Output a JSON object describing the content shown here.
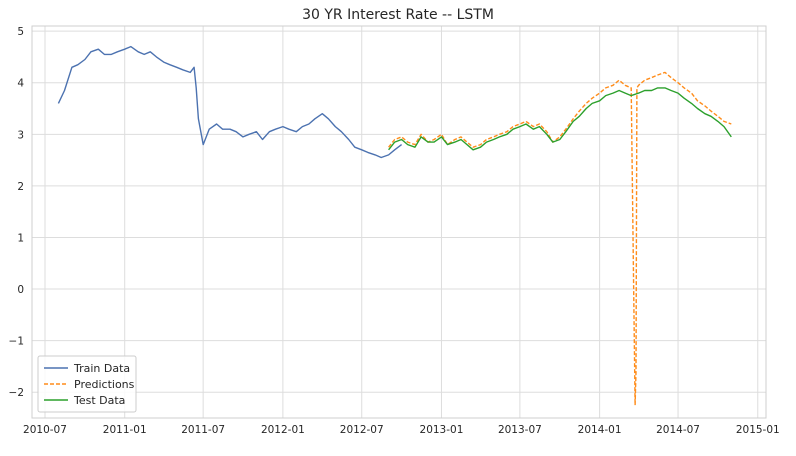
{
  "chart_data": {
    "type": "line",
    "title": "30 YR Interest Rate -- LSTM",
    "xlabel": "",
    "ylabel": "",
    "xlim": [
      "2010-06-01",
      "2015-01-20"
    ],
    "ylim": [
      -2.5,
      5.1
    ],
    "x_ticks": [
      "2010-07",
      "2011-01",
      "2011-07",
      "2012-01",
      "2012-07",
      "2013-01",
      "2013-07",
      "2014-01",
      "2014-07",
      "2015-01"
    ],
    "y_ticks": [
      -2,
      -1,
      0,
      1,
      2,
      3,
      4,
      5
    ],
    "grid": true,
    "legend_position": "lower-left",
    "colors": {
      "train": "#4c72b0",
      "predictions": "#ff8c1a",
      "test": "#2ca02c"
    },
    "series": [
      {
        "name": "Train Data",
        "style": "solid",
        "x": [
          "2010-08-01",
          "2010-08-15",
          "2010-09-01",
          "2010-09-15",
          "2010-10-01",
          "2010-10-15",
          "2010-11-01",
          "2010-11-15",
          "2010-12-01",
          "2010-12-15",
          "2011-01-01",
          "2011-01-15",
          "2011-02-01",
          "2011-02-15",
          "2011-03-01",
          "2011-03-15",
          "2011-04-01",
          "2011-04-15",
          "2011-05-01",
          "2011-05-15",
          "2011-06-01",
          "2011-06-10",
          "2011-06-15",
          "2011-06-20",
          "2011-07-01",
          "2011-07-15",
          "2011-08-01",
          "2011-08-15",
          "2011-09-01",
          "2011-09-15",
          "2011-10-01",
          "2011-10-15",
          "2011-11-01",
          "2011-11-15",
          "2011-12-01",
          "2011-12-15",
          "2012-01-01",
          "2012-01-15",
          "2012-02-01",
          "2012-02-15",
          "2012-03-01",
          "2012-03-15",
          "2012-04-01",
          "2012-04-15",
          "2012-05-01",
          "2012-05-15",
          "2012-06-01",
          "2012-06-15",
          "2012-07-01",
          "2012-07-15",
          "2012-08-01",
          "2012-08-15",
          "2012-09-01",
          "2012-09-15",
          "2012-10-01"
        ],
        "values": [
          3.6,
          3.85,
          4.3,
          4.35,
          4.45,
          4.6,
          4.65,
          4.55,
          4.55,
          4.6,
          4.65,
          4.7,
          4.6,
          4.55,
          4.6,
          4.5,
          4.4,
          4.35,
          4.3,
          4.25,
          4.2,
          4.3,
          3.9,
          3.3,
          2.8,
          3.1,
          3.2,
          3.1,
          3.1,
          3.05,
          2.95,
          3.0,
          3.05,
          2.9,
          3.05,
          3.1,
          3.15,
          3.1,
          3.05,
          3.15,
          3.2,
          3.3,
          3.4,
          3.3,
          3.15,
          3.05,
          2.9,
          2.75,
          2.7,
          2.65,
          2.6,
          2.55,
          2.6,
          2.7,
          2.8
        ]
      },
      {
        "name": "Predictions",
        "style": "dashed",
        "x": [
          "2012-09-01",
          "2012-09-15",
          "2012-10-01",
          "2012-10-15",
          "2012-11-01",
          "2012-11-15",
          "2012-12-01",
          "2012-12-15",
          "2013-01-01",
          "2013-01-15",
          "2013-02-01",
          "2013-02-15",
          "2013-03-01",
          "2013-03-15",
          "2013-04-01",
          "2013-04-15",
          "2013-05-01",
          "2013-05-15",
          "2013-06-01",
          "2013-06-15",
          "2013-07-01",
          "2013-07-15",
          "2013-08-01",
          "2013-08-15",
          "2013-09-01",
          "2013-09-15",
          "2013-10-01",
          "2013-10-15",
          "2013-11-01",
          "2013-11-15",
          "2013-12-01",
          "2013-12-15",
          "2014-01-01",
          "2014-01-15",
          "2014-02-01",
          "2014-02-15",
          "2014-03-01",
          "2014-03-15",
          "2014-03-22",
          "2014-03-24",
          "2014-03-26",
          "2014-03-28",
          "2014-04-01",
          "2014-04-15",
          "2014-05-01",
          "2014-05-15",
          "2014-06-01",
          "2014-06-15",
          "2014-07-01",
          "2014-07-15",
          "2014-08-01",
          "2014-08-15",
          "2014-09-01",
          "2014-09-15",
          "2014-10-01",
          "2014-10-15",
          "2014-11-01"
        ],
        "values": [
          2.75,
          2.9,
          2.95,
          2.85,
          2.8,
          3.0,
          2.85,
          2.9,
          3.0,
          2.8,
          2.9,
          2.95,
          2.85,
          2.75,
          2.8,
          2.9,
          2.95,
          3.0,
          3.05,
          3.15,
          3.2,
          3.25,
          3.15,
          3.2,
          3.05,
          2.85,
          2.95,
          3.1,
          3.3,
          3.45,
          3.6,
          3.7,
          3.8,
          3.9,
          3.95,
          4.05,
          3.95,
          3.9,
          -1.0,
          -2.25,
          -1.6,
          3.9,
          3.95,
          4.05,
          4.1,
          4.15,
          4.2,
          4.1,
          4.0,
          3.9,
          3.8,
          3.65,
          3.55,
          3.45,
          3.35,
          3.25,
          3.2
        ]
      },
      {
        "name": "Test Data",
        "style": "solid",
        "x": [
          "2012-09-01",
          "2012-09-15",
          "2012-10-01",
          "2012-10-15",
          "2012-11-01",
          "2012-11-15",
          "2012-12-01",
          "2012-12-15",
          "2013-01-01",
          "2013-01-15",
          "2013-02-01",
          "2013-02-15",
          "2013-03-01",
          "2013-03-15",
          "2013-04-01",
          "2013-04-15",
          "2013-05-01",
          "2013-05-15",
          "2013-06-01",
          "2013-06-15",
          "2013-07-01",
          "2013-07-15",
          "2013-08-01",
          "2013-08-15",
          "2013-09-01",
          "2013-09-15",
          "2013-10-01",
          "2013-10-15",
          "2013-11-01",
          "2013-11-15",
          "2013-12-01",
          "2013-12-15",
          "2014-01-01",
          "2014-01-15",
          "2014-02-01",
          "2014-02-15",
          "2014-03-01",
          "2014-03-15",
          "2014-04-01",
          "2014-04-15",
          "2014-05-01",
          "2014-05-15",
          "2014-06-01",
          "2014-06-15",
          "2014-07-01",
          "2014-07-15",
          "2014-08-01",
          "2014-08-15",
          "2014-09-01",
          "2014-09-15",
          "2014-10-01",
          "2014-10-15",
          "2014-11-01"
        ],
        "values": [
          2.7,
          2.85,
          2.9,
          2.8,
          2.75,
          2.95,
          2.85,
          2.85,
          2.95,
          2.8,
          2.85,
          2.9,
          2.8,
          2.7,
          2.75,
          2.85,
          2.9,
          2.95,
          3.0,
          3.1,
          3.15,
          3.2,
          3.1,
          3.15,
          3.0,
          2.85,
          2.9,
          3.05,
          3.25,
          3.35,
          3.5,
          3.6,
          3.65,
          3.75,
          3.8,
          3.85,
          3.8,
          3.75,
          3.8,
          3.85,
          3.85,
          3.9,
          3.9,
          3.85,
          3.8,
          3.7,
          3.6,
          3.5,
          3.4,
          3.35,
          3.25,
          3.15,
          2.95
        ]
      }
    ]
  }
}
